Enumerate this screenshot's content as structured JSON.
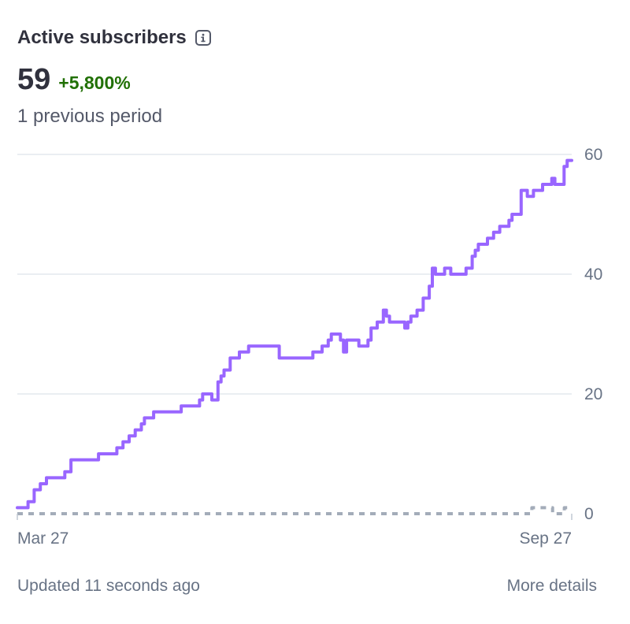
{
  "header": {
    "title": "Active subscribers",
    "value": "59",
    "delta": "+5,800%",
    "compare_label": "1 previous period"
  },
  "footer": {
    "updated": "Updated 11 seconds ago",
    "details_link": "More details"
  },
  "colors": {
    "current_series": "#9966ff",
    "previous_series": "#a3acb9",
    "delta_positive": "#217005",
    "gridline": "#e3e8ee"
  },
  "chart_data": {
    "type": "line",
    "x_tick_labels": [
      "Mar 27",
      "Sep 27"
    ],
    "y_tick_labels": [
      "0",
      "20",
      "40",
      "60"
    ],
    "ylim": [
      0,
      60
    ],
    "y_axis_position": "right",
    "grid": true,
    "series": [
      {
        "style": "solid",
        "values": [
          1,
          1,
          1,
          1,
          2,
          2,
          4,
          4,
          5,
          5,
          6,
          6,
          6,
          6,
          6,
          6,
          7,
          7,
          9,
          9,
          9,
          9,
          9,
          9,
          9,
          9,
          9,
          10,
          10,
          10,
          10,
          10,
          10,
          11,
          11,
          12,
          12,
          13,
          13,
          14,
          14,
          15,
          16,
          16,
          16,
          17,
          17,
          17,
          17,
          17,
          17,
          17,
          17,
          17,
          18,
          18,
          18,
          18,
          18,
          18,
          19,
          20,
          20,
          20,
          19,
          19,
          22,
          23,
          24,
          24,
          26,
          26,
          26,
          27,
          27,
          27,
          28,
          28,
          28,
          28,
          28,
          28,
          28,
          28,
          28,
          28,
          26,
          26,
          26,
          26,
          26,
          26,
          26,
          26,
          26,
          26,
          26,
          27,
          27,
          27,
          28,
          28,
          29,
          30,
          30,
          30,
          29,
          27,
          29,
          29,
          29,
          29,
          28,
          28,
          28,
          29,
          31,
          31,
          32,
          32,
          34,
          33,
          32,
          32,
          32,
          32,
          32,
          31,
          32,
          33,
          33,
          34,
          34,
          36,
          36,
          38,
          41,
          40,
          40,
          40,
          41,
          41,
          40,
          40,
          40,
          40,
          40,
          41,
          41,
          43,
          44,
          45,
          45,
          45,
          46,
          46,
          47,
          47,
          48,
          48,
          48,
          49,
          50,
          50,
          50,
          54,
          54,
          53,
          53,
          54,
          54,
          54,
          55,
          55,
          55,
          56,
          55,
          55,
          55,
          58,
          59,
          59
        ]
      },
      {
        "style": "dashed",
        "values": [
          0,
          0,
          0,
          0,
          0,
          0,
          0,
          0,
          0,
          0,
          0,
          0,
          0,
          0,
          0,
          0,
          0,
          0,
          0,
          0,
          0,
          0,
          0,
          0,
          0,
          0,
          0,
          0,
          0,
          0,
          0,
          0,
          0,
          0,
          0,
          0,
          0,
          0,
          0,
          0,
          0,
          0,
          0,
          0,
          0,
          0,
          0,
          0,
          0,
          0,
          0,
          0,
          0,
          0,
          0,
          0,
          0,
          0,
          0,
          0,
          0,
          0,
          0,
          0,
          0,
          0,
          0,
          0,
          0,
          0,
          0,
          0,
          0,
          0,
          0,
          0,
          0,
          0,
          0,
          0,
          0,
          0,
          0,
          0,
          0,
          0,
          0,
          0,
          0,
          0,
          0,
          0,
          0,
          0,
          0,
          0,
          0,
          0,
          0,
          0,
          0,
          0,
          0,
          0,
          0,
          0,
          0,
          0,
          0,
          0,
          0,
          0,
          0,
          0,
          0,
          0,
          0,
          0,
          0,
          0,
          0,
          0,
          0,
          0,
          0,
          0,
          0,
          0,
          0,
          0,
          0,
          0,
          0,
          0,
          0,
          0,
          0,
          0,
          0,
          0,
          0,
          0,
          0,
          0,
          0,
          0,
          0,
          0,
          0,
          0,
          0,
          0,
          0,
          0,
          0,
          0,
          0,
          0,
          0,
          0,
          0,
          0,
          0,
          0,
          0,
          0,
          0,
          0,
          0,
          0,
          0,
          0,
          0,
          0,
          0,
          1,
          1,
          1,
          1,
          1,
          1,
          1,
          0,
          0,
          0,
          0,
          1,
          1,
          1
        ]
      }
    ]
  }
}
